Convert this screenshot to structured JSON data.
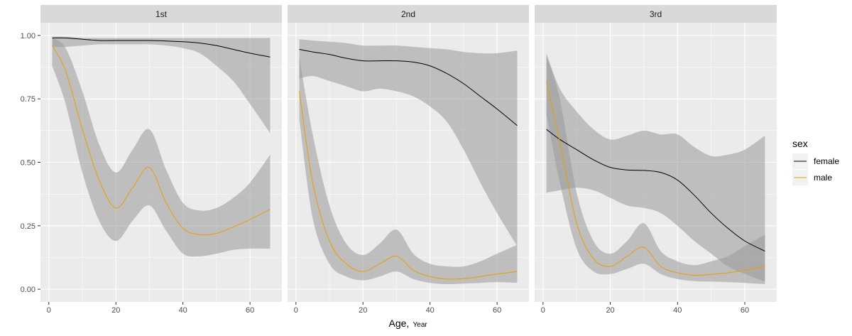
{
  "chart_data": {
    "type": "line",
    "xlabel": "Age",
    "xlabel_sub": "Year",
    "ylabel": "",
    "xlim": [
      -2.5,
      69.5
    ],
    "ylim": [
      -0.05,
      1.05
    ],
    "x_ticks": [
      0,
      20,
      40,
      60
    ],
    "y_ticks": [
      0.0,
      0.25,
      0.5,
      0.75,
      1.0
    ],
    "x_tick_labels": [
      "0",
      "20",
      "40",
      "60"
    ],
    "y_tick_labels": [
      "0.00",
      "0.25",
      "0.50",
      "0.75",
      "1.00"
    ],
    "legend": {
      "title": "sex",
      "position": "right",
      "entries": [
        {
          "label": "female",
          "color": "#000000"
        },
        {
          "label": "male",
          "color": "#E69F00"
        }
      ]
    },
    "band_color": "#999999",
    "panel_background": "#EBEBEB",
    "strip_background": "#D9D9D9",
    "grid_color": "#FFFFFF",
    "panels": [
      {
        "label": "1st",
        "series": [
          {
            "name": "female",
            "color": "#000000",
            "x": [
              1,
              5,
              10,
              15,
              20,
              25,
              30,
              35,
              40,
              45,
              50,
              55,
              60,
              66
            ],
            "y": [
              0.99,
              0.99,
              0.985,
              0.98,
              0.98,
              0.98,
              0.98,
              0.978,
              0.975,
              0.97,
              0.96,
              0.945,
              0.93,
              0.915
            ],
            "lower": [
              0.955,
              0.955,
              0.96,
              0.965,
              0.965,
              0.965,
              0.965,
              0.96,
              0.95,
              0.93,
              0.88,
              0.82,
              0.73,
              0.615
            ],
            "upper": [
              0.995,
              0.995,
              0.99,
              0.99,
              0.99,
              0.99,
              0.99,
              0.99,
              0.99,
              0.99,
              0.99,
              0.99,
              0.99,
              0.99
            ]
          },
          {
            "name": "male",
            "color": "#E69F00",
            "x": [
              1,
              5,
              10,
              15,
              20,
              25,
              30,
              35,
              40,
              45,
              50,
              55,
              60,
              66
            ],
            "y": [
              0.96,
              0.86,
              0.63,
              0.43,
              0.32,
              0.4,
              0.48,
              0.34,
              0.24,
              0.215,
              0.22,
              0.245,
              0.275,
              0.315
            ],
            "lower": [
              0.88,
              0.73,
              0.46,
              0.27,
              0.19,
              0.27,
              0.33,
              0.23,
              0.14,
              0.13,
              0.14,
              0.155,
              0.16,
              0.16
            ],
            "upper": [
              0.99,
              0.95,
              0.78,
              0.57,
              0.46,
              0.55,
              0.63,
              0.47,
              0.34,
              0.31,
              0.32,
              0.36,
              0.42,
              0.53
            ]
          }
        ]
      },
      {
        "label": "2nd",
        "series": [
          {
            "name": "female",
            "color": "#000000",
            "x": [
              1,
              5,
              10,
              15,
              20,
              25,
              30,
              35,
              40,
              45,
              50,
              55,
              60,
              66
            ],
            "y": [
              0.945,
              0.935,
              0.925,
              0.91,
              0.9,
              0.9,
              0.9,
              0.895,
              0.88,
              0.85,
              0.81,
              0.76,
              0.71,
              0.645
            ],
            "lower": [
              0.83,
              0.84,
              0.82,
              0.8,
              0.78,
              0.79,
              0.78,
              0.76,
              0.72,
              0.66,
              0.55,
              0.42,
              0.3,
              0.17
            ],
            "upper": [
              0.985,
              0.98,
              0.975,
              0.97,
              0.96,
              0.96,
              0.96,
              0.955,
              0.95,
              0.945,
              0.935,
              0.93,
              0.93,
              0.94
            ]
          },
          {
            "name": "male",
            "color": "#E69F00",
            "x": [
              1,
              5,
              10,
              15,
              20,
              25,
              30,
              35,
              40,
              45,
              50,
              55,
              60,
              66
            ],
            "y": [
              0.78,
              0.42,
              0.19,
              0.1,
              0.07,
              0.1,
              0.13,
              0.075,
              0.05,
              0.04,
              0.042,
              0.05,
              0.06,
              0.07
            ],
            "lower": [
              0.67,
              0.28,
              0.1,
              0.05,
              0.035,
              0.05,
              0.07,
              0.04,
              0.025,
              0.02,
              0.022,
              0.025,
              0.028,
              0.025
            ],
            "upper": [
              0.915,
              0.61,
              0.33,
              0.18,
              0.135,
              0.18,
              0.235,
              0.14,
              0.1,
              0.09,
              0.09,
              0.11,
              0.14,
              0.175
            ]
          }
        ]
      },
      {
        "label": "3rd",
        "series": [
          {
            "name": "female",
            "color": "#000000",
            "x": [
              1,
              5,
              10,
              15,
              20,
              25,
              30,
              35,
              40,
              45,
              50,
              55,
              60,
              66
            ],
            "y": [
              0.63,
              0.59,
              0.55,
              0.51,
              0.48,
              0.47,
              0.468,
              0.46,
              0.43,
              0.37,
              0.3,
              0.24,
              0.19,
              0.15
            ],
            "lower": [
              0.38,
              0.39,
              0.4,
              0.39,
              0.36,
              0.33,
              0.32,
              0.3,
              0.25,
              0.19,
              0.14,
              0.09,
              0.06,
              0.03
            ],
            "upper": [
              0.93,
              0.79,
              0.7,
              0.63,
              0.59,
              0.605,
              0.625,
              0.61,
              0.61,
              0.56,
              0.525,
              0.53,
              0.55,
              0.605
            ]
          },
          {
            "name": "male",
            "color": "#E69F00",
            "x": [
              1,
              5,
              10,
              15,
              20,
              25,
              30,
              35,
              40,
              45,
              50,
              55,
              60,
              66
            ],
            "y": [
              0.82,
              0.58,
              0.26,
              0.12,
              0.09,
              0.13,
              0.165,
              0.09,
              0.065,
              0.055,
              0.058,
              0.065,
              0.075,
              0.09
            ],
            "lower": [
              0.69,
              0.42,
              0.16,
              0.07,
              0.06,
              0.08,
              0.1,
              0.06,
              0.04,
              0.032,
              0.03,
              0.028,
              0.025,
              0.02
            ],
            "upper": [
              0.92,
              0.75,
              0.38,
              0.19,
              0.14,
              0.19,
              0.26,
              0.15,
              0.11,
              0.095,
              0.11,
              0.13,
              0.17,
              0.215
            ]
          }
        ]
      }
    ]
  }
}
